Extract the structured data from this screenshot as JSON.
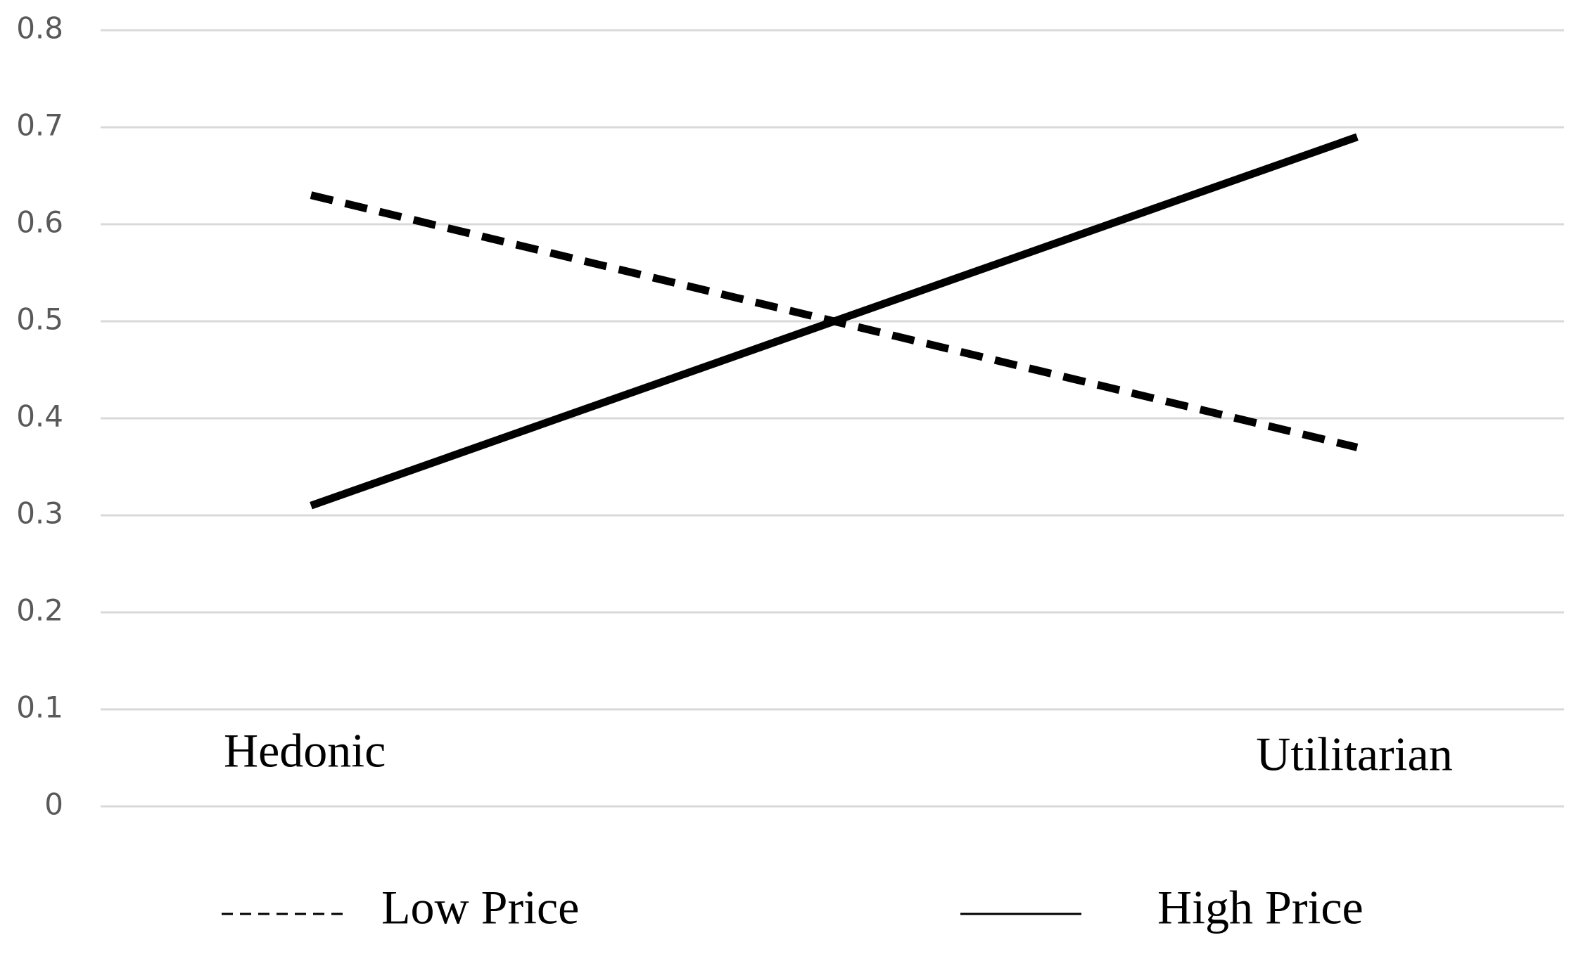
{
  "chart_data": {
    "type": "line",
    "categories": [
      "Hedonic",
      "Utilitarian"
    ],
    "series": [
      {
        "name": "Low Price",
        "color": "#000000",
        "line_style": "dashed",
        "values": [
          0.63,
          0.37
        ]
      },
      {
        "name": "High Price",
        "color": "#000000",
        "line_style": "solid",
        "values": [
          0.31,
          0.69
        ]
      }
    ],
    "ylim": [
      0,
      0.8
    ],
    "yticks": [
      0,
      0.1,
      0.2,
      0.3,
      0.4,
      0.5,
      0.6,
      0.7,
      0.8
    ],
    "grid": true,
    "legend": "bottom"
  }
}
